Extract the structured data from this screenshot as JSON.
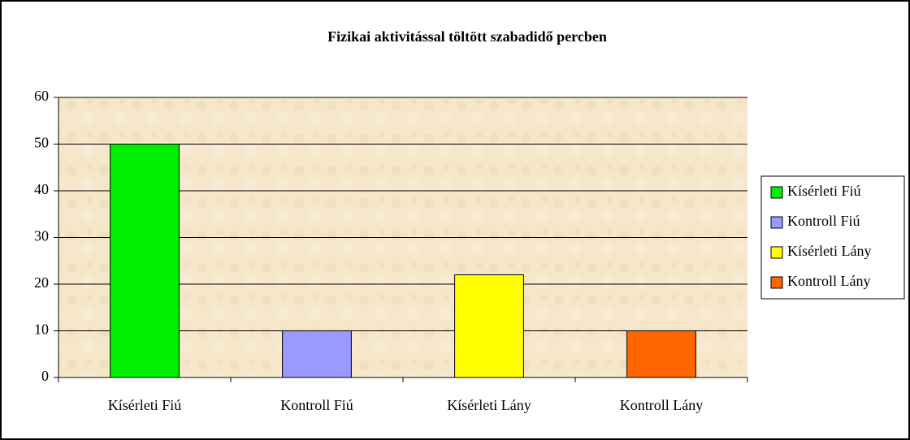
{
  "chart_data": {
    "type": "bar",
    "title": "Fizikai aktivitással töltött szabadidő percben",
    "categories": [
      "Kísérleti Fiú",
      "Kontroll Fiú",
      "Kísérleti Lány",
      "Kontroll Lány"
    ],
    "values": [
      50,
      10,
      22,
      10
    ],
    "colors": [
      "#00ee00",
      "#9999ff",
      "#ffff00",
      "#ff6600"
    ],
    "ylim": [
      0,
      60
    ],
    "yticks": [
      0,
      10,
      20,
      30,
      40,
      50,
      60
    ],
    "grid": true,
    "legend": "right"
  }
}
